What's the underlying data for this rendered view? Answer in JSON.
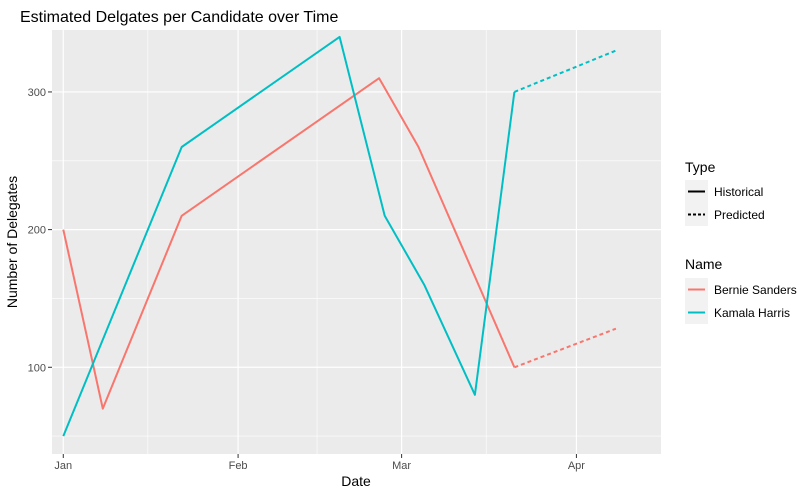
{
  "chart_data": {
    "type": "line",
    "title": "Estimated Delgates per Candidate over Time",
    "xlabel": "Date",
    "ylabel": "Number of Delegates",
    "x_ticks": [
      "Jan",
      "Feb",
      "Mar",
      "Apr"
    ],
    "y_ticks": [
      100,
      200,
      300
    ],
    "xlim": [
      "2019-12-30",
      "2020-04-16"
    ],
    "ylim": [
      37,
      345
    ],
    "grid": true,
    "background": "#ebebeb",
    "legend_placement": "right",
    "legends": {
      "type": {
        "title": "Type",
        "entries": [
          {
            "label": "Historical",
            "linestyle": "solid"
          },
          {
            "label": "Predicted",
            "linestyle": "dashed"
          }
        ]
      },
      "name": {
        "title": "Name",
        "entries": [
          {
            "label": "Bernie Sanders",
            "color": "#f8766d"
          },
          {
            "label": "Kamala Harris",
            "color": "#00bfc4"
          }
        ]
      }
    },
    "series": [
      {
        "name": "Bernie Sanders",
        "color": "#f8766d",
        "historical": [
          {
            "x": "2020-01-01",
            "y": 200
          },
          {
            "x": "2020-01-08",
            "y": 70
          },
          {
            "x": "2020-01-22",
            "y": 210
          },
          {
            "x": "2020-02-26",
            "y": 310
          },
          {
            "x": "2020-03-04",
            "y": 260
          },
          {
            "x": "2020-03-21",
            "y": 100
          }
        ],
        "predicted": [
          {
            "x": "2020-03-21",
            "y": 100
          },
          {
            "x": "2020-04-08",
            "y": 128
          }
        ]
      },
      {
        "name": "Kamala Harris",
        "color": "#00bfc4",
        "historical": [
          {
            "x": "2020-01-01",
            "y": 50
          },
          {
            "x": "2020-01-22",
            "y": 260
          },
          {
            "x": "2020-02-19",
            "y": 340
          },
          {
            "x": "2020-02-27",
            "y": 210
          },
          {
            "x": "2020-03-05",
            "y": 160
          },
          {
            "x": "2020-03-14",
            "y": 80
          },
          {
            "x": "2020-03-21",
            "y": 300
          }
        ],
        "predicted": [
          {
            "x": "2020-03-21",
            "y": 300
          },
          {
            "x": "2020-04-08",
            "y": 330
          }
        ]
      }
    ]
  }
}
